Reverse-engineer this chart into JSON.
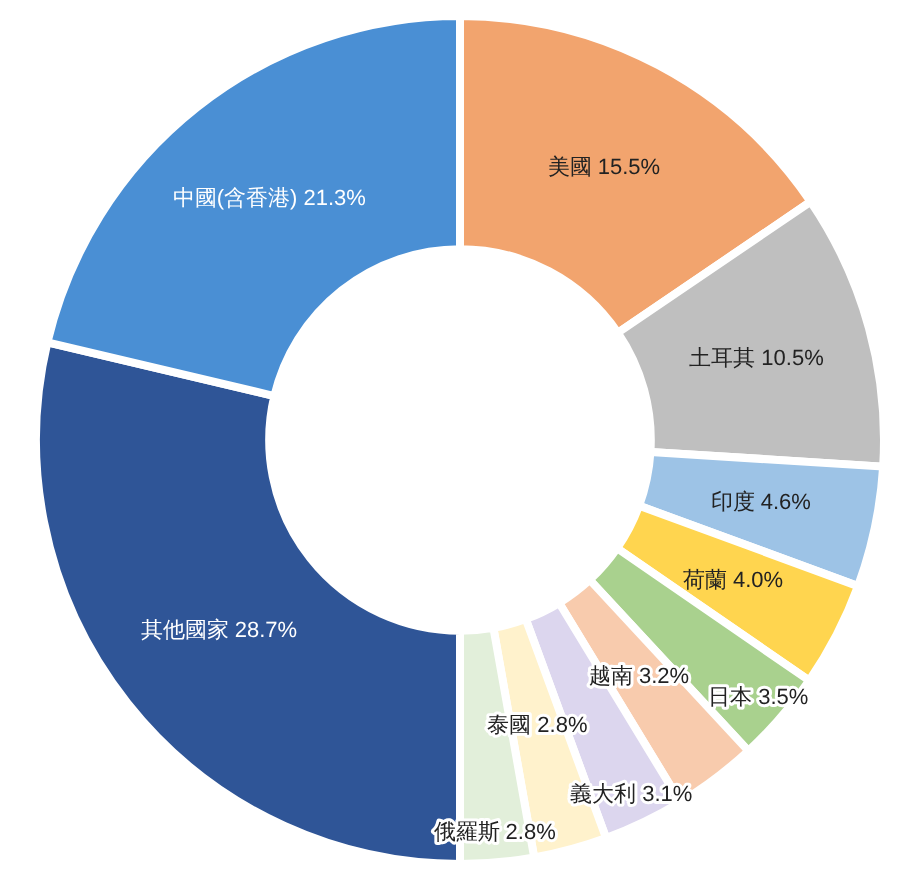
{
  "chart_data": {
    "type": "donut",
    "categories": [
      "美國",
      "土耳其",
      "印度",
      "荷蘭",
      "日本",
      "越南",
      "義大利",
      "泰國",
      "俄羅斯",
      "其他國家",
      "中國(含香港)"
    ],
    "values": [
      15.5,
      10.5,
      4.6,
      4.0,
      3.5,
      3.2,
      3.1,
      2.8,
      2.8,
      28.7,
      21.3
    ],
    "value_labels": [
      "15.5%",
      "10.5%",
      "4.6%",
      "4.0%",
      "3.5%",
      "3.2%",
      "3.1%",
      "2.8%",
      "2.8%",
      "28.7%",
      "21.3%"
    ],
    "colors": [
      "#f2a46e",
      "#bfbfbf",
      "#9dc3e6",
      "#ffd54f",
      "#a9d18e",
      "#f8cbad",
      "#dcd6ee",
      "#fff2cc",
      "#e2efda",
      "#2f5597",
      "#4a8fd4"
    ]
  }
}
